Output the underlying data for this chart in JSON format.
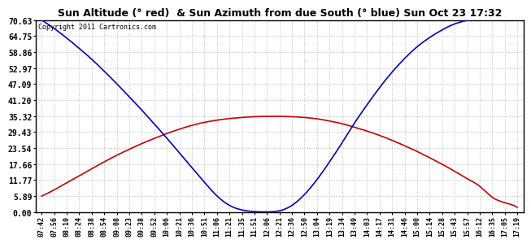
{
  "title": "Sun Altitude (° red)  & Sun Azimuth from due South (° blue) Sun Oct 23 17:32",
  "copyright_text": "Copyright 2011 Cartronics.com",
  "yticks": [
    0.0,
    5.89,
    11.77,
    17.66,
    23.54,
    29.43,
    35.32,
    41.2,
    47.09,
    52.97,
    58.86,
    64.75,
    70.63
  ],
  "ylim": [
    0.0,
    70.63
  ],
  "x_labels": [
    "07:42",
    "07:56",
    "08:10",
    "08:24",
    "08:38",
    "08:54",
    "09:08",
    "09:23",
    "09:38",
    "09:52",
    "10:06",
    "10:21",
    "10:36",
    "10:51",
    "11:06",
    "11:21",
    "11:35",
    "11:51",
    "12:06",
    "12:21",
    "12:36",
    "12:50",
    "13:04",
    "13:19",
    "13:34",
    "13:49",
    "14:03",
    "14:17",
    "14:31",
    "14:46",
    "15:00",
    "15:14",
    "15:28",
    "15:43",
    "15:57",
    "16:12",
    "16:35",
    "17:05",
    "17:19"
  ],
  "background_color": "#ffffff",
  "plot_bg_color": "#ffffff",
  "grid_color": "#b0b0b0",
  "title_color": "#000000",
  "red_line_color": "#cc0000",
  "blue_line_color": "#0000cc",
  "alt_values": [
    5.89,
    8.2,
    10.8,
    13.4,
    16.0,
    18.5,
    20.9,
    23.1,
    25.2,
    27.1,
    28.9,
    30.5,
    31.9,
    33.0,
    33.8,
    34.4,
    34.8,
    35.1,
    35.2,
    35.2,
    35.1,
    34.8,
    34.3,
    33.5,
    32.5,
    31.2,
    29.8,
    28.2,
    26.4,
    24.4,
    22.3,
    20.0,
    17.6,
    15.0,
    12.3,
    9.5,
    5.5,
    3.5,
    1.8
  ],
  "az_values": [
    70.63,
    67.5,
    64.0,
    60.2,
    56.2,
    51.8,
    47.2,
    42.4,
    37.5,
    32.4,
    27.2,
    21.8,
    16.4,
    11.0,
    6.0,
    2.5,
    0.8,
    0.2,
    0.1,
    0.5,
    2.5,
    6.5,
    12.0,
    18.5,
    25.5,
    32.8,
    39.5,
    45.8,
    51.5,
    56.5,
    60.8,
    64.2,
    67.0,
    69.2,
    70.5,
    71.5,
    72.8,
    73.5,
    70.63
  ]
}
